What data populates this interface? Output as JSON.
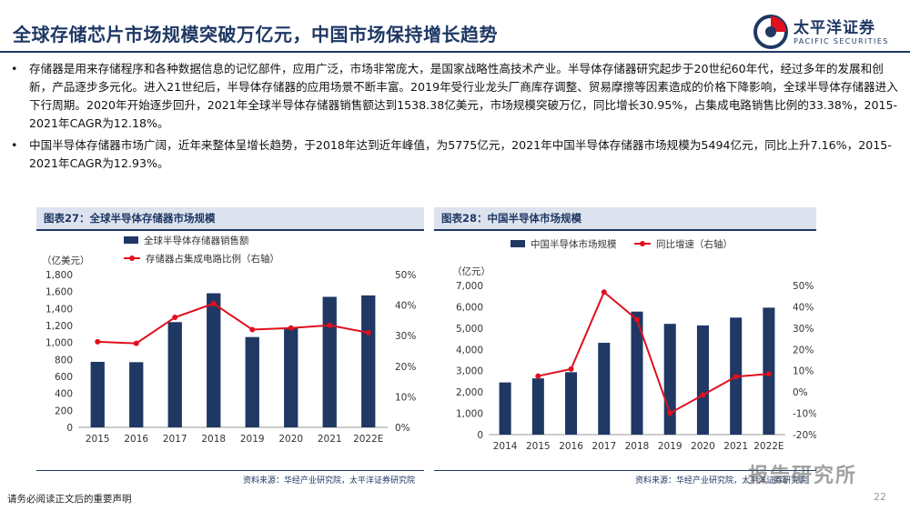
{
  "header": {
    "title": "全球存储芯片市场规模突破万亿元，中国市场保持增长趋势",
    "logo_cn": "太平洋证券",
    "logo_en": "PACIFIC SECURITIES"
  },
  "bullets": [
    "存储器是用来存储程序和各种数据信息的记忆部件，应用广泛，市场非常庞大，是国家战略性高技术产业。半导体存储器研究起步于20世纪60年代，经过多年的发展和创新，产品逐步多元化。进入21世纪后，半导体存储器的应用场景不断丰富。2019年受行业龙头厂商库存调整、贸易摩擦等因素造成的价格下降影响，全球半导体存储器进入下行周期。2020年开始逐步回升，2021年全球半导体存储器销售额达到1538.38亿美元，市场规模突破万亿，同比增长30.95%，占集成电路销售比例的33.38%，2015-2021年CAGR为12.18%。",
    "中国半导体存储器市场广阔，近年来整体呈增长趋势，于2018年达到近年峰值，为5775亿元，2021年中国半导体存储器市场规模为5494亿元，同比上升7.16%，2015-2021年CAGR为12.93%。"
  ],
  "panel_left": {
    "heading": "图表27：全球半导体存储器市场规模",
    "source": "资料来源：华经产业研究院，太平洋证券研究院"
  },
  "panel_right": {
    "heading": "图表28：中国半导体市场规模",
    "source": "资料来源：华经产业研究院，太平洋证券研究院"
  },
  "footer": {
    "note": "请务必阅读正文后的重要声明",
    "page": "22",
    "watermark": "报告研究所"
  },
  "colors": {
    "brand": "#1f3864",
    "bar": "#1f3864",
    "line": "#e0101e"
  },
  "chart_data": [
    {
      "type": "bar",
      "unit_label": "（亿美元）",
      "categories": [
        "2015",
        "2016",
        "2017",
        "2018",
        "2019",
        "2020",
        "2021",
        "2022E"
      ],
      "series": [
        {
          "name": "全球半导体存储器销售额",
          "type": "bar",
          "axis": "left",
          "values": [
            772,
            768,
            1240,
            1580,
            1064,
            1175,
            1538,
            1555
          ]
        },
        {
          "name": "存储器占集成电路比例（右轴）",
          "type": "line",
          "axis": "right",
          "values": [
            28,
            27.5,
            36,
            40.5,
            32,
            32.5,
            33.4,
            31
          ]
        }
      ],
      "ylim": [
        0,
        1800
      ],
      "y_ticks": [
        "0",
        "200",
        "400",
        "600",
        "800",
        "1,000",
        "1,200",
        "1,400",
        "1,600",
        "1,800"
      ],
      "y2lim": [
        0,
        50
      ],
      "y2_ticks": [
        "0%",
        "10%",
        "20%",
        "30%",
        "40%",
        "50%"
      ],
      "legend": "top-left"
    },
    {
      "type": "bar",
      "unit_label": "（亿元）",
      "categories": [
        "2014",
        "2015",
        "2016",
        "2017",
        "2018",
        "2019",
        "2020",
        "2021",
        "2022E"
      ],
      "series": [
        {
          "name": "中国半导体市场规模",
          "type": "bar",
          "axis": "left",
          "values": [
            2450,
            2640,
            2930,
            4310,
            5775,
            5200,
            5127,
            5494,
            5960
          ]
        },
        {
          "name": "同比增速（右轴）",
          "type": "line",
          "axis": "right",
          "values": [
            null,
            7.5,
            10.8,
            46.9,
            34,
            -9.9,
            -1.4,
            7.2,
            8.5
          ]
        }
      ],
      "ylim": [
        0,
        7000
      ],
      "y_ticks": [
        "0",
        "1,000",
        "2,000",
        "3,000",
        "4,000",
        "5,000",
        "6,000",
        "7,000"
      ],
      "y2lim": [
        -20,
        50
      ],
      "y2_ticks": [
        "-20%",
        "-10%",
        "0%",
        "10%",
        "20%",
        "30%",
        "40%",
        "50%"
      ],
      "legend": "top-center"
    }
  ]
}
